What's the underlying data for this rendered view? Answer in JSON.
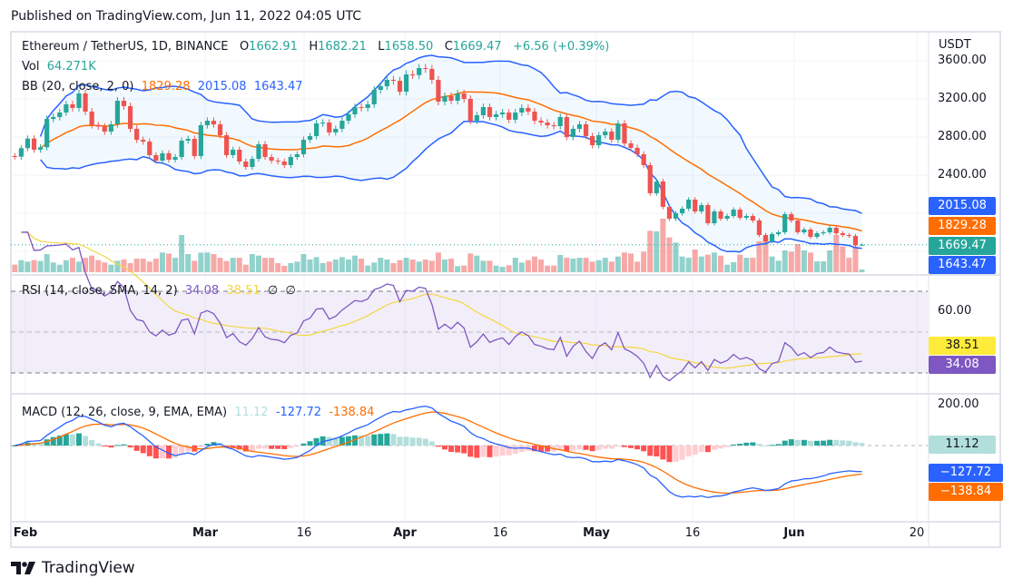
{
  "header": {
    "published": "Published on TradingView.com, Jun 11, 2022 04:05 UTC"
  },
  "legend": {
    "symbol": "Ethereum / TetherUS, 1D, BINANCE",
    "o_label": "O",
    "open": "1662.91",
    "h_label": "H",
    "high": "1682.21",
    "l_label": "L",
    "low": "1658.50",
    "c_label": "C",
    "close": "1669.47",
    "change": "+6.56 (+0.39%)"
  },
  "volume": {
    "label": "Vol",
    "value": "64.271K"
  },
  "bb": {
    "label": "BB (20, close, 2, 0)",
    "basis": "1829.28",
    "upper": "2015.08",
    "lower": "1643.47"
  },
  "rsi": {
    "label": "RSI (14, close, SMA, 14, 2)",
    "value": "34.08",
    "sma": "38.51",
    "extra1": "∅",
    "extra2": "∅"
  },
  "macd": {
    "label": "MACD (12, 26, close, 9, EMA, EMA)",
    "histogram": "11.12",
    "macd": "-127.72",
    "signal": "-138.84"
  },
  "price_scale": {
    "currency": "USDT",
    "ticks": [
      "3600.00",
      "3200.00",
      "2800.00",
      "2400.00"
    ],
    "badges": {
      "upper": "2015.08",
      "basis": "1829.28",
      "last": "1669.47",
      "lower": "1643.47"
    }
  },
  "rsi_scale": {
    "ticks": [
      "60.00"
    ],
    "badges": {
      "sma": "38.51",
      "rsi": "34.08"
    }
  },
  "macd_scale": {
    "ticks": [
      "200.00"
    ],
    "badges": {
      "histogram": "11.12",
      "macd": "−127.72",
      "signal": "−138.84"
    }
  },
  "time_axis": {
    "labels": [
      "Feb",
      "Mar",
      "16",
      "Apr",
      "16",
      "May",
      "16",
      "Jun",
      "20"
    ]
  },
  "footer": {
    "brand": "TradingView"
  },
  "colors": {
    "up": "#26a69a",
    "down": "#ef5350",
    "bb_band": "#2962ff",
    "bb_basis": "#ff6d00",
    "rsi": "#7e57c2",
    "rsi_sma": "#f5d63d",
    "macd": "#2962ff",
    "signal": "#ff6d00",
    "hist_up_strong": "#26a69a",
    "hist_up_weak": "#b2dfdb",
    "hist_down_strong": "#ff5252",
    "hist_down_weak": "#ffcdd2"
  },
  "chart_data": {
    "type": "bar",
    "style": "candlestick",
    "x_start": "2022-01-30",
    "interval": "1D",
    "ylabel": "USDT",
    "ylim": [
      1400,
      3900
    ],
    "grid": true,
    "first_open": 2600,
    "last_bar": {
      "open": 1662.91,
      "high": 1682.21,
      "low": 1658.5,
      "close": 1669.47
    },
    "close": [
      2594,
      2683,
      2784,
      2667,
      2692,
      2990,
      3010,
      3057,
      3143,
      3105,
      3257,
      3067,
      2924,
      2910,
      2857,
      2933,
      3181,
      3124,
      2886,
      2771,
      2752,
      2610,
      2552,
      2629,
      2562,
      2590,
      2762,
      2781,
      2600,
      2924,
      2971,
      2933,
      2819,
      2610,
      2667,
      2543,
      2486,
      2571,
      2724,
      2590,
      2552,
      2543,
      2505,
      2590,
      2619,
      2771,
      2810,
      2943,
      2952,
      2848,
      2886,
      2971,
      3038,
      3114,
      3105,
      3143,
      3295,
      3333,
      3400,
      3390,
      3276,
      3457,
      3450,
      3524,
      3515,
      3400,
      3171,
      3229,
      3181,
      3257,
      3200,
      2971,
      3029,
      3114,
      3010,
      3038,
      3057,
      2981,
      3057,
      3105,
      3067,
      2971,
      2952,
      2924,
      2914,
      3010,
      2800,
      2886,
      2933,
      2810,
      2714,
      2819,
      2857,
      2771,
      2943,
      2733,
      2686,
      2619,
      2505,
      2210,
      2333,
      2067,
      1943,
      2000,
      2048,
      2143,
      2019,
      2086,
      1895,
      2019,
      1943,
      1971,
      2038,
      1952,
      1971,
      1924,
      1771,
      1705,
      1781,
      1800,
      1990,
      1924,
      1800,
      1829,
      1752,
      1790,
      1800,
      1848,
      1790,
      1771,
      1762,
      1662.91,
      1669.47
    ],
    "volume_k": [
      178,
      285,
      250,
      285,
      265,
      428,
      230,
      178,
      285,
      340,
      250,
      340,
      392,
      285,
      230,
      178,
      270,
      300,
      215,
      320,
      320,
      250,
      320,
      464,
      440,
      340,
      878,
      428,
      270,
      460,
      465,
      428,
      340,
      265,
      340,
      340,
      178,
      428,
      392,
      340,
      340,
      215,
      150,
      215,
      250,
      428,
      300,
      357,
      214,
      250,
      300,
      357,
      300,
      392,
      321,
      157,
      228,
      342,
      300,
      214,
      285,
      342,
      300,
      250,
      300,
      271,
      464,
      300,
      321,
      143,
      157,
      442,
      392,
      271,
      271,
      157,
      128,
      164,
      342,
      228,
      285,
      371,
      300,
      157,
      157,
      407,
      342,
      321,
      342,
      342,
      250,
      285,
      342,
      250,
      371,
      464,
      442,
      250,
      485,
      977,
      963,
      1263,
      820,
      699,
      371,
      342,
      535,
      371,
      414,
      464,
      392,
      178,
      235,
      414,
      342,
      342,
      728,
      806,
      371,
      271,
      514,
      485,
      663,
      514,
      464,
      257,
      257,
      514,
      877,
      606,
      342,
      606,
      64.271
    ],
    "indicators": {
      "bollinger": {
        "length": 20,
        "mult": 2,
        "last": {
          "basis": 1829.28,
          "upper": 2015.08,
          "lower": 1643.47
        }
      },
      "rsi": {
        "length": 14,
        "sma_length": 14,
        "upper_band": 70,
        "middle_band": 50,
        "lower_band": 30,
        "last": {
          "rsi": 34.08,
          "sma": 38.51
        }
      },
      "macd": {
        "fast": 12,
        "slow": 26,
        "signal": 9,
        "last": {
          "histogram": 11.12,
          "macd": -127.72,
          "signal": -138.84
        }
      }
    }
  }
}
